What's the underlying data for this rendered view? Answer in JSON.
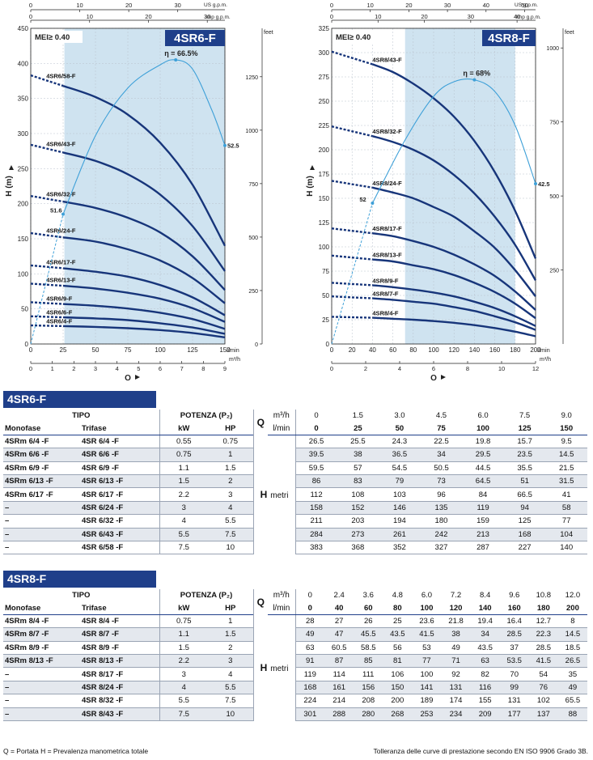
{
  "chart_data": [
    {
      "type": "line",
      "model": "4SR6-F",
      "mei": "MEI≥ 0.40",
      "ylabel": "H (m)",
      "xlabel": "Q",
      "x_unit": "l/min",
      "x_axis": {
        "min": 0,
        "max": 150,
        "ticks": [
          0,
          25,
          50,
          75,
          100,
          125,
          150
        ]
      },
      "y_axis": {
        "min": 0,
        "max": 450,
        "ticks": [
          0,
          50,
          100,
          150,
          200,
          250,
          300,
          350,
          400,
          450
        ]
      },
      "top_axis": {
        "unit": "US g.p.m.",
        "ticks": [
          0,
          10,
          20,
          30,
          40
        ]
      },
      "top_axis_2": {
        "unit": "Imp g.p.m.",
        "ticks": [
          0,
          10,
          20,
          30
        ]
      },
      "bottom_axis_2": {
        "unit": "m³/h",
        "ticks": [
          0,
          1,
          2,
          3,
          4,
          5,
          6,
          7,
          8,
          9
        ]
      },
      "right_axis": {
        "unit": "feet",
        "ticks": [
          0,
          250,
          500,
          750,
          1000,
          1250
        ]
      },
      "efficiency_zone": [
        26,
        150
      ],
      "x": [
        0,
        25,
        50,
        75,
        100,
        125,
        150
      ],
      "series": [
        {
          "name": "4SR6/4-F",
          "values": [
            26.5,
            25.5,
            24.3,
            22.5,
            19.8,
            15.7,
            9.5
          ]
        },
        {
          "name": "4SR6/6-F",
          "values": [
            39.5,
            38,
            36.5,
            34,
            29.5,
            23.5,
            14.5
          ]
        },
        {
          "name": "4SR6/9-F",
          "values": [
            59.5,
            57,
            54.5,
            50.5,
            44.5,
            35.5,
            21.5
          ]
        },
        {
          "name": "4SR6/13-F",
          "values": [
            86,
            83,
            79,
            73,
            64.5,
            51,
            31.5
          ]
        },
        {
          "name": "4SR6/17-F",
          "values": [
            112,
            108,
            103,
            96,
            84,
            66.5,
            41
          ]
        },
        {
          "name": "4SR6/24-F",
          "values": [
            158,
            152,
            146,
            135,
            119,
            94,
            58
          ]
        },
        {
          "name": "4SR6/32-F",
          "values": [
            211,
            203,
            194,
            180,
            159,
            125,
            77
          ]
        },
        {
          "name": "4SR6/43-F",
          "values": [
            284,
            273,
            261,
            242,
            213,
            168,
            104
          ]
        },
        {
          "name": "4SR6/58-F",
          "values": [
            383,
            368,
            352,
            327,
            287,
            227,
            140
          ]
        }
      ],
      "efficiency_curve": {
        "label": "η = 66.5%",
        "start_label": "51.6",
        "end_label": "52.5",
        "x": [
          0,
          25,
          50,
          75,
          100,
          112,
          125,
          140,
          150
        ],
        "y": [
          0,
          185,
          297,
          365,
          398,
          405,
          392,
          333,
          283
        ]
      }
    },
    {
      "type": "line",
      "model": "4SR8-F",
      "mei": "MEI≥ 0.40",
      "ylabel": "H (m)",
      "xlabel": "Q",
      "x_unit": "l/min",
      "x_axis": {
        "min": 0,
        "max": 200,
        "ticks": [
          0,
          20,
          40,
          60,
          80,
          100,
          120,
          140,
          160,
          180,
          200
        ]
      },
      "y_axis": {
        "min": 0,
        "max": 325,
        "ticks": [
          0,
          25,
          50,
          75,
          100,
          125,
          150,
          175,
          200,
          225,
          250,
          275,
          300,
          325
        ]
      },
      "top_axis": {
        "unit": "US g.p.m.",
        "ticks": [
          0,
          10,
          20,
          30,
          40,
          50
        ]
      },
      "top_axis_2": {
        "unit": "Imp g.p.m.",
        "ticks": [
          0,
          10,
          20,
          30,
          40
        ]
      },
      "bottom_axis_2": {
        "unit": "m³/h",
        "ticks": [
          0,
          2,
          4,
          6,
          8,
          10,
          12
        ]
      },
      "right_axis": {
        "unit": "feet",
        "ticks": [
          250,
          500,
          750,
          1000
        ]
      },
      "efficiency_zone": [
        72,
        180
      ],
      "x": [
        40,
        60,
        80,
        100,
        120,
        140,
        160,
        180,
        200
      ],
      "series": [
        {
          "name": "4SR8/4-F",
          "values": [
            27,
            26,
            25,
            23.6,
            21.8,
            19.4,
            16.4,
            12.7,
            8
          ]
        },
        {
          "name": "4SR8/7-F",
          "values": [
            47,
            45.5,
            43.5,
            41.5,
            38,
            34,
            28.5,
            22.3,
            14.5
          ]
        },
        {
          "name": "4SR8/9-F",
          "values": [
            60.5,
            58.5,
            56,
            53,
            49,
            43.5,
            37,
            28.5,
            18.5
          ]
        },
        {
          "name": "4SR8/13-F",
          "values": [
            87,
            85,
            81,
            77,
            71,
            63,
            53.5,
            41.5,
            26.5
          ]
        },
        {
          "name": "4SR8/17-F",
          "values": [
            114,
            111,
            106,
            100,
            92,
            82,
            70,
            54,
            35
          ]
        },
        {
          "name": "4SR8/24-F",
          "values": [
            161,
            156,
            150,
            141,
            131,
            116,
            99,
            76,
            49
          ]
        },
        {
          "name": "4SR8/32-F",
          "values": [
            214,
            208,
            200,
            189,
            174,
            155,
            131,
            102,
            65.5
          ]
        },
        {
          "name": "4SR8/43-F",
          "values": [
            288,
            280,
            268,
            253,
            234,
            209,
            177,
            137,
            88
          ]
        }
      ],
      "shutoff_values": [
        28,
        49,
        63,
        91,
        119,
        168,
        224,
        301
      ],
      "efficiency_curve": {
        "label": "η = 68%",
        "start_label": "52",
        "end_label": "42.5",
        "x": [
          0,
          40,
          72,
          100,
          120,
          140,
          160,
          180,
          200
        ],
        "y": [
          0,
          145,
          210,
          255,
          270,
          272,
          260,
          225,
          165
        ]
      }
    }
  ],
  "tables": [
    {
      "title": "4SR6-F",
      "headers": {
        "tipo": "TIPO",
        "potenza": "POTENZA (P₂)",
        "monofase": "Monofase",
        "trifase": "Trifase",
        "kw": "kW",
        "hp": "HP",
        "q": "Q",
        "m3h": "m³/h",
        "lmin": "l/min",
        "h": "H",
        "metri": "metri"
      },
      "q_m3h": [
        "0",
        "1.5",
        "3.0",
        "4.5",
        "6.0",
        "7.5",
        "9.0"
      ],
      "q_lmin": [
        "0",
        "25",
        "50",
        "75",
        "100",
        "125",
        "150"
      ],
      "rows": [
        {
          "mono": "4SRm 6/4   -F",
          "tri": "4SR 6/4   -F",
          "kw": "0.55",
          "hp": "0.75",
          "h": [
            "26.5",
            "25.5",
            "24.3",
            "22.5",
            "19.8",
            "15.7",
            "9.5"
          ]
        },
        {
          "mono": "4SRm 6/6   -F",
          "tri": "4SR 6/6   -F",
          "kw": "0.75",
          "hp": "1",
          "h": [
            "39.5",
            "38",
            "36.5",
            "34",
            "29.5",
            "23.5",
            "14.5"
          ]
        },
        {
          "mono": "4SRm 6/9   -F",
          "tri": "4SR 6/9   -F",
          "kw": "1.1",
          "hp": "1.5",
          "h": [
            "59.5",
            "57",
            "54.5",
            "50.5",
            "44.5",
            "35.5",
            "21.5"
          ]
        },
        {
          "mono": "4SRm 6/13 -F",
          "tri": "4SR 6/13 -F",
          "kw": "1.5",
          "hp": "2",
          "h": [
            "86",
            "83",
            "79",
            "73",
            "64.5",
            "51",
            "31.5"
          ]
        },
        {
          "mono": "4SRm 6/17 -F",
          "tri": "4SR 6/17 -F",
          "kw": "2.2",
          "hp": "3",
          "h": [
            "112",
            "108",
            "103",
            "96",
            "84",
            "66.5",
            "41"
          ]
        },
        {
          "mono": "–",
          "tri": "4SR 6/24 -F",
          "kw": "3",
          "hp": "4",
          "h": [
            "158",
            "152",
            "146",
            "135",
            "119",
            "94",
            "58"
          ]
        },
        {
          "mono": "–",
          "tri": "4SR 6/32 -F",
          "kw": "4",
          "hp": "5.5",
          "h": [
            "211",
            "203",
            "194",
            "180",
            "159",
            "125",
            "77"
          ]
        },
        {
          "mono": "–",
          "tri": "4SR 6/43 -F",
          "kw": "5.5",
          "hp": "7.5",
          "h": [
            "284",
            "273",
            "261",
            "242",
            "213",
            "168",
            "104"
          ]
        },
        {
          "mono": "–",
          "tri": "4SR 6/58 -F",
          "kw": "7.5",
          "hp": "10",
          "h": [
            "383",
            "368",
            "352",
            "327",
            "287",
            "227",
            "140"
          ]
        }
      ]
    },
    {
      "title": "4SR8-F",
      "headers": {
        "tipo": "TIPO",
        "potenza": "POTENZA (P₂)",
        "monofase": "Monofase",
        "trifase": "Trifase",
        "kw": "kW",
        "hp": "HP",
        "q": "Q",
        "m3h": "m³/h",
        "lmin": "l/min",
        "h": "H",
        "metri": "metri"
      },
      "q_m3h": [
        "0",
        "2.4",
        "3.6",
        "4.8",
        "6.0",
        "7.2",
        "8.4",
        "9.6",
        "10.8",
        "12.0"
      ],
      "q_lmin": [
        "0",
        "40",
        "60",
        "80",
        "100",
        "120",
        "140",
        "160",
        "180",
        "200"
      ],
      "rows": [
        {
          "mono": "4SRm 8/4   -F",
          "tri": "4SR 8/4   -F",
          "kw": "0.75",
          "hp": "1",
          "h": [
            "28",
            "27",
            "26",
            "25",
            "23.6",
            "21.8",
            "19.4",
            "16.4",
            "12.7",
            "8"
          ]
        },
        {
          "mono": "4SRm 8/7   -F",
          "tri": "4SR 8/7   -F",
          "kw": "1.1",
          "hp": "1.5",
          "h": [
            "49",
            "47",
            "45.5",
            "43.5",
            "41.5",
            "38",
            "34",
            "28.5",
            "22.3",
            "14.5"
          ]
        },
        {
          "mono": "4SRm 8/9   -F",
          "tri": "4SR 8/9   -F",
          "kw": "1.5",
          "hp": "2",
          "h": [
            "63",
            "60.5",
            "58.5",
            "56",
            "53",
            "49",
            "43.5",
            "37",
            "28.5",
            "18.5"
          ]
        },
        {
          "mono": "4SRm 8/13 -F",
          "tri": "4SR 8/13 -F",
          "kw": "2.2",
          "hp": "3",
          "h": [
            "91",
            "87",
            "85",
            "81",
            "77",
            "71",
            "63",
            "53.5",
            "41.5",
            "26.5"
          ]
        },
        {
          "mono": "–",
          "tri": "4SR 8/17 -F",
          "kw": "3",
          "hp": "4",
          "h": [
            "119",
            "114",
            "111",
            "106",
            "100",
            "92",
            "82",
            "70",
            "54",
            "35"
          ]
        },
        {
          "mono": "–",
          "tri": "4SR 8/24 -F",
          "kw": "4",
          "hp": "5.5",
          "h": [
            "168",
            "161",
            "156",
            "150",
            "141",
            "131",
            "116",
            "99",
            "76",
            "49"
          ]
        },
        {
          "mono": "–",
          "tri": "4SR 8/32 -F",
          "kw": "5.5",
          "hp": "7.5",
          "h": [
            "224",
            "214",
            "208",
            "200",
            "189",
            "174",
            "155",
            "131",
            "102",
            "65.5"
          ]
        },
        {
          "mono": "–",
          "tri": "4SR 8/43 -F",
          "kw": "7.5",
          "hp": "10",
          "h": [
            "301",
            "288",
            "280",
            "268",
            "253",
            "234",
            "209",
            "177",
            "137",
            "88"
          ]
        }
      ]
    }
  ],
  "footer": {
    "legend": "Q = Portata    H = Prevalenza manometrica totale",
    "note": "Tolleranza delle curve di prestazione secondo EN ISO 9906 Grado 3B."
  },
  "colors": {
    "curve": "#17357a",
    "efficiency": "#3ea0d8",
    "zone": "#cfe3f0",
    "header": "#1f3f8a"
  }
}
